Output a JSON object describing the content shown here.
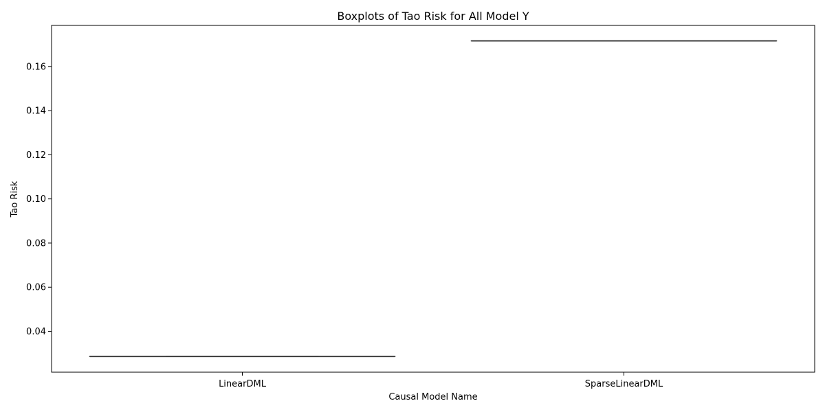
{
  "chart_data": {
    "type": "box",
    "title": "Boxplots of Tao Risk for All Model Y",
    "xlabel": "Causal Model Name",
    "ylabel": "Tao Risk",
    "categories": [
      "LinearDML",
      "SparseLinearDML"
    ],
    "series": [
      {
        "values": [
          0.0286,
          0.1716
        ]
      }
    ],
    "boxes": [
      {
        "category": "LinearDML",
        "min": 0.0286,
        "q1": 0.0286,
        "median": 0.0286,
        "q3": 0.0286,
        "max": 0.0286
      },
      {
        "category": "SparseLinearDML",
        "min": 0.1716,
        "q1": 0.1716,
        "median": 0.1716,
        "q3": 0.1716,
        "max": 0.1716
      }
    ],
    "ylim": [
      0.0215,
      0.1786
    ],
    "yticks": [
      0.04,
      0.06,
      0.08,
      0.1,
      0.12,
      0.14,
      0.16
    ],
    "ytick_labels": [
      "0.04",
      "0.06",
      "0.08",
      "0.10",
      "0.12",
      "0.14",
      "0.16"
    ],
    "grid": false,
    "colors": {
      "box_line": "#3f3f3f",
      "axes": "#000000",
      "background": "#ffffff"
    }
  }
}
